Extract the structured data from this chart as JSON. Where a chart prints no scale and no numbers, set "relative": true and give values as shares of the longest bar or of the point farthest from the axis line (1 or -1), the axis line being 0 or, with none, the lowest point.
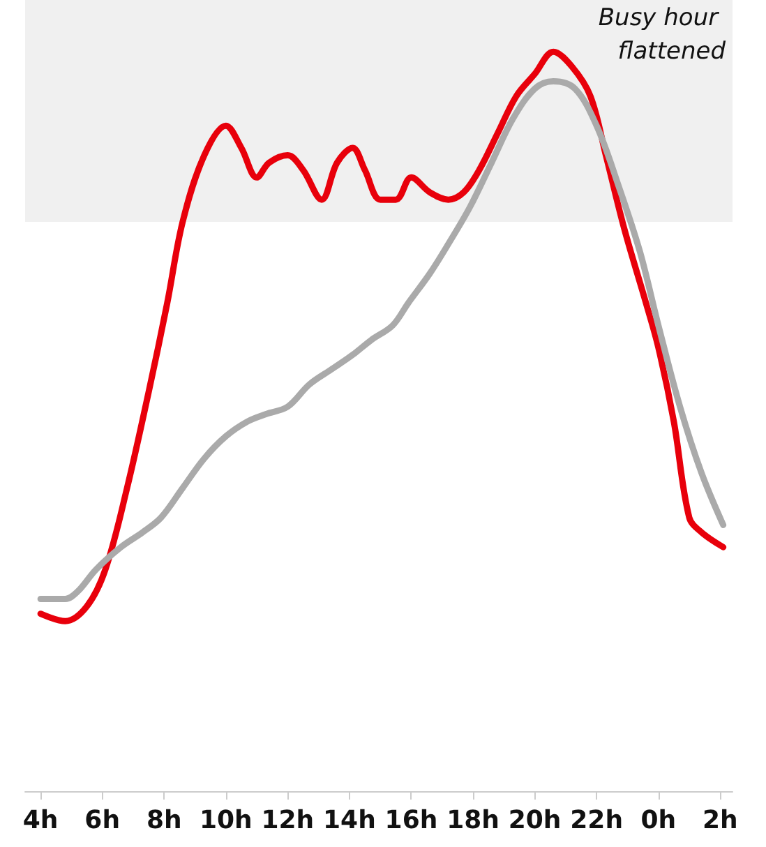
{
  "chart_data": {
    "type": "line",
    "relative": true,
    "xlim": [
      "--01-01T03:30",
      "--01-02T02:24"
    ],
    "xticks": [
      {
        "value": "--01-01T04:00",
        "label": "4h"
      },
      {
        "value": "--01-01T06:00",
        "label": "6h"
      },
      {
        "value": "--01-01T08:00",
        "label": "8h"
      },
      {
        "value": "--01-01T10:00",
        "label": "10h"
      },
      {
        "value": "--01-01T12:00",
        "label": "12h"
      },
      {
        "value": "--01-01T14:00",
        "label": "14h"
      },
      {
        "value": "--01-01T16:00",
        "label": "16h"
      },
      {
        "value": "--01-01T18:00",
        "label": "18h"
      },
      {
        "value": "--01-01T20:00",
        "label": "20h"
      },
      {
        "value": "--01-01T22:00",
        "label": "22h"
      },
      {
        "value": "--01-02T00:00",
        "label": "0h"
      },
      {
        "value": "--01-02T02:00",
        "label": "2h"
      }
    ],
    "series": [
      {
        "color": "#e8000b",
        "x": [
          "--01-01T04:00",
          "--01-01T04:48",
          "--01-01T05:30",
          "--01-01T06:06",
          "--01-01T06:48",
          "--01-01T07:30",
          "--01-01T08:06",
          "--01-01T08:36",
          "--01-01T09:18",
          "--01-01T10:00",
          "--01-01T10:30",
          "--01-01T11:00",
          "--01-01T11:24",
          "--01-01T12:00",
          "--01-01T12:30",
          "--01-01T13:06",
          "--01-01T13:36",
          "--01-01T14:06",
          "--01-01T14:30",
          "--01-01T15:00",
          "--01-01T15:30",
          "--01-01T16:00",
          "--01-01T16:36",
          "--01-01T17:12",
          "--01-01T17:42",
          "--01-01T18:12",
          "--01-01T18:48",
          "--01-01T19:24",
          "--01-01T20:00",
          "--01-01T20:36",
          "--01-01T21:12",
          "--01-01T21:48",
          "--01-01T22:18",
          "--01-01T22:54",
          "--01-01T23:36",
          "--01-02T00:00",
          "--01-02T00:30",
          "--01-02T01:00",
          "--01-02T01:24",
          "--01-02T02:06"
        ],
        "values": [
          0.24,
          0.23,
          0.25,
          0.3,
          0.41,
          0.54,
          0.66,
          0.77,
          0.86,
          0.9,
          0.87,
          0.83,
          0.85,
          0.86,
          0.84,
          0.8,
          0.85,
          0.87,
          0.84,
          0.8,
          0.8,
          0.83,
          0.81,
          0.8,
          0.81,
          0.84,
          0.89,
          0.94,
          0.97,
          1.0,
          0.98,
          0.94,
          0.86,
          0.76,
          0.66,
          0.6,
          0.5,
          0.37,
          0.35,
          0.33
        ]
      },
      {
        "color": "#aaaaaa",
        "x": [
          "--01-01T04:00",
          "--01-01T04:48",
          "--01-01T05:12",
          "--01-01T05:48",
          "--01-01T06:36",
          "--01-01T07:18",
          "--01-01T07:54",
          "--01-01T08:36",
          "--01-01T09:18",
          "--01-01T10:00",
          "--01-01T10:42",
          "--01-01T11:18",
          "--01-01T12:00",
          "--01-01T12:42",
          "--01-01T13:24",
          "--01-01T14:06",
          "--01-01T14:42",
          "--01-01T15:24",
          "--01-01T15:54",
          "--01-01T16:36",
          "--01-01T17:12",
          "--01-01T17:54",
          "--01-01T18:36",
          "--01-01T19:18",
          "--01-01T20:00",
          "--01-01T20:36",
          "--01-01T21:18",
          "--01-01T22:00",
          "--01-01T22:42",
          "--01-01T23:24",
          "--01-02T00:00",
          "--01-02T00:42",
          "--01-02T01:24",
          "--01-02T02:06"
        ],
        "values": [
          0.26,
          0.26,
          0.27,
          0.3,
          0.33,
          0.35,
          0.37,
          0.41,
          0.45,
          0.48,
          0.5,
          0.51,
          0.52,
          0.55,
          0.57,
          0.59,
          0.61,
          0.63,
          0.66,
          0.7,
          0.74,
          0.79,
          0.85,
          0.91,
          0.95,
          0.96,
          0.95,
          0.9,
          0.82,
          0.73,
          0.63,
          0.52,
          0.43,
          0.36
        ]
      }
    ],
    "bands": [
      {
        "axis": "y",
        "from": 0.77,
        "to": 1.07,
        "label": "Busy hour flattened",
        "color": "#f0f0f0"
      }
    ],
    "grid": false,
    "marker": "none",
    "line_style": "solid"
  }
}
